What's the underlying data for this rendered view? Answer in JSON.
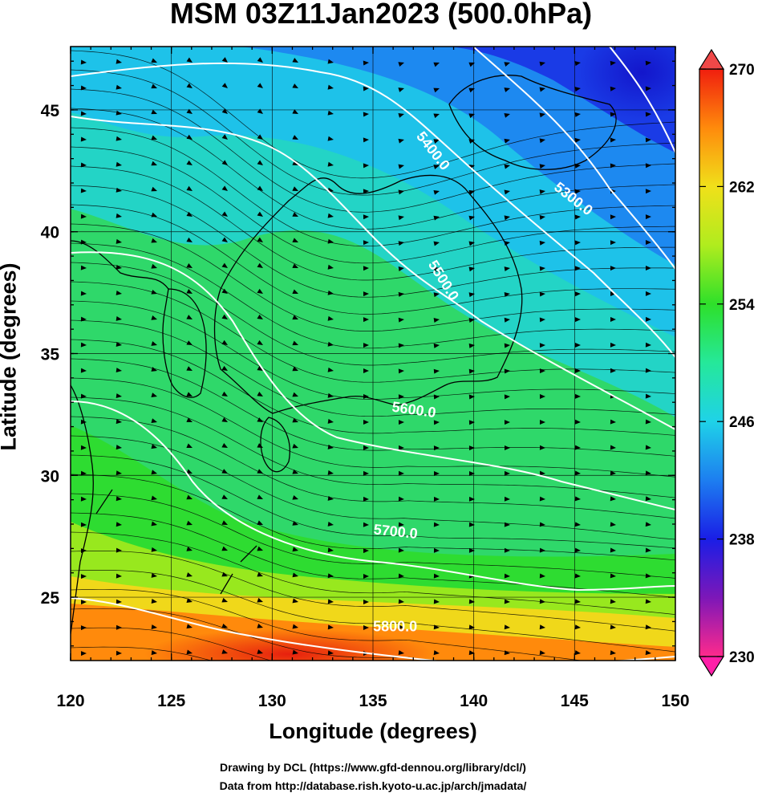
{
  "title": "MSM 03Z11Jan2023 (500.0hPa)",
  "xlabel": "Longitude (degrees)",
  "ylabel": "Latitude  (degrees)",
  "x_ticks": [
    "120",
    "125",
    "130",
    "135",
    "140",
    "145",
    "150"
  ],
  "y_ticks": [
    "25",
    "30",
    "35",
    "40",
    "45"
  ],
  "lon_range": [
    120,
    150
  ],
  "lat_range": [
    22.4,
    47.6
  ],
  "colorbar": {
    "range": [
      230,
      270
    ],
    "tick_labels": [
      "270",
      "262",
      "254",
      "246",
      "238",
      "230"
    ],
    "tick_values": [
      270,
      262,
      254,
      246,
      238,
      230
    ],
    "colors": [
      "#ff2a8c",
      "#7d17b8",
      "#1a1ee6",
      "#1d7ef0",
      "#1fd2e8",
      "#25e89a",
      "#2ee02a",
      "#b0ec1e",
      "#f0e01a",
      "#ff8a0c",
      "#f01e0e"
    ]
  },
  "contours": [
    {
      "label": "5300.0",
      "value": 5300,
      "label_lon": 144.8,
      "label_lat": 41.2
    },
    {
      "label": "5400.0",
      "value": 5400,
      "label_lon": 137.8,
      "label_lat": 43.2
    },
    {
      "label": "5500.0",
      "value": 5500,
      "label_lon": 138.3,
      "label_lat": 37.9
    },
    {
      "label": "5600.0",
      "value": 5600,
      "label_lon": 137.0,
      "label_lat": 32.5
    },
    {
      "label": "5700.0",
      "value": 5700,
      "label_lon": 136.1,
      "label_lat": 27.5
    },
    {
      "label": "5800.0",
      "value": 5800,
      "label_lon": 136.1,
      "label_lat": 23.6
    }
  ],
  "credits": {
    "drawing": "Drawing by DCL (https://www.gfd-dennou.org/library/dcl/)",
    "data": "Data from http://database.rish.kyoto-u.ac.jp/arch/jmadata/"
  }
}
